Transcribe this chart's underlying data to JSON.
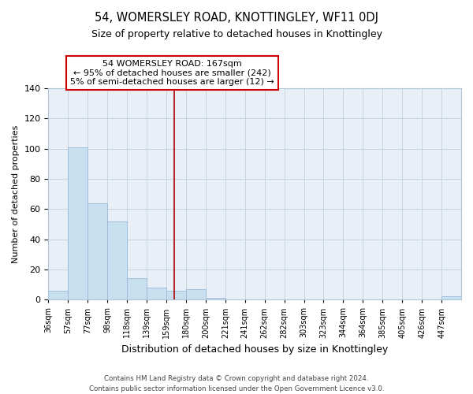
{
  "title": "54, WOMERSLEY ROAD, KNOTTINGLEY, WF11 0DJ",
  "subtitle": "Size of property relative to detached houses in Knottingley",
  "xlabel": "Distribution of detached houses by size in Knottingley",
  "ylabel": "Number of detached properties",
  "bar_labels": [
    "36sqm",
    "57sqm",
    "77sqm",
    "98sqm",
    "118sqm",
    "139sqm",
    "159sqm",
    "180sqm",
    "200sqm",
    "221sqm",
    "241sqm",
    "262sqm",
    "282sqm",
    "303sqm",
    "323sqm",
    "344sqm",
    "364sqm",
    "385sqm",
    "405sqm",
    "426sqm",
    "447sqm"
  ],
  "bar_values": [
    6,
    101,
    64,
    52,
    14,
    8,
    6,
    7,
    1,
    0,
    0,
    0,
    0,
    0,
    0,
    0,
    0,
    0,
    0,
    0,
    2
  ],
  "bar_color": "#c8dff0",
  "bar_edge_color": "#9ab8d8",
  "marker_color": "#aa0000",
  "ylim": [
    0,
    140
  ],
  "yticks": [
    0,
    20,
    40,
    60,
    80,
    100,
    120,
    140
  ],
  "annotation_title": "54 WOMERSLEY ROAD: 167sqm",
  "annotation_line1": "← 95% of detached houses are smaller (242)",
  "annotation_line2": "5% of semi-detached houses are larger (12) →",
  "annotation_box_color": "#ffffff",
  "annotation_box_edge": "#cc0000",
  "footer_line1": "Contains HM Land Registry data © Crown copyright and database right 2024.",
  "footer_line2": "Contains public sector information licensed under the Open Government Licence v3.0.",
  "plot_bg_color": "#e8eff6",
  "grid_color": "#c8d4e0"
}
